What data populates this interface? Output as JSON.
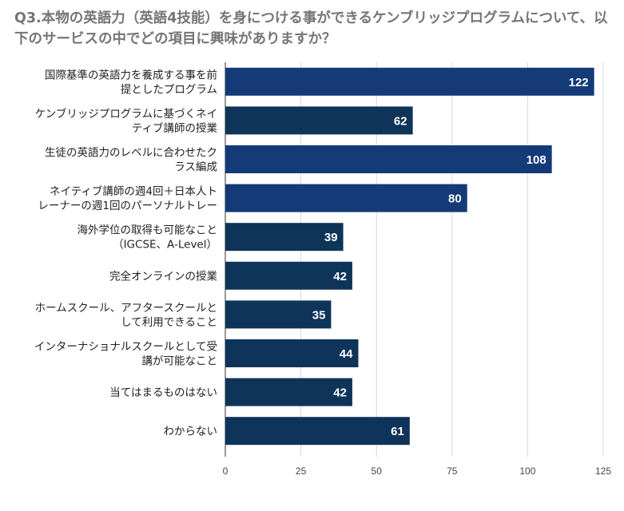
{
  "chart_data": {
    "type": "bar",
    "orientation": "horizontal",
    "title": "Q3.本物の英語力（英語4技能）を身につける事ができるケンブリッジプログラムについて、以下のサービスの中でどの項目に興味がありますか？",
    "categories": [
      [
        "国際基準の英語力を養成する事を前",
        "提としたプログラム"
      ],
      [
        "ケンブリッジプログラムに基づくネイ",
        "ティブ講師の授業"
      ],
      [
        "生徒の英語力のレベルに合わせたク",
        "ラス編成"
      ],
      [
        "ネイティブ講師の週4回＋日本人ト",
        "レーナーの週1回のパーソナルトレー"
      ],
      [
        "海外学位の取得も可能なこと",
        "（IGCSE、A-Level）"
      ],
      [
        "完全オンラインの授業"
      ],
      [
        "ホームスクール、アフタースクールと",
        "して利用できること"
      ],
      [
        "インターナショナルスクールとして受",
        "講が可能なこと"
      ],
      [
        "当てはまるものはない"
      ],
      [
        "わからない"
      ]
    ],
    "values": [
      122,
      62,
      108,
      80,
      39,
      42,
      35,
      44,
      42,
      61
    ],
    "bar_colors": [
      "#143a78",
      "#0f3459",
      "#143a78",
      "#143a78",
      "#0f3459",
      "#0f3459",
      "#0f3459",
      "#0f3459",
      "#0f3459",
      "#0f3459"
    ],
    "xlim": [
      0,
      125
    ],
    "xticks": [
      0,
      25,
      50,
      75,
      100,
      125
    ],
    "grid": true,
    "xlabel": "",
    "ylabel": ""
  }
}
